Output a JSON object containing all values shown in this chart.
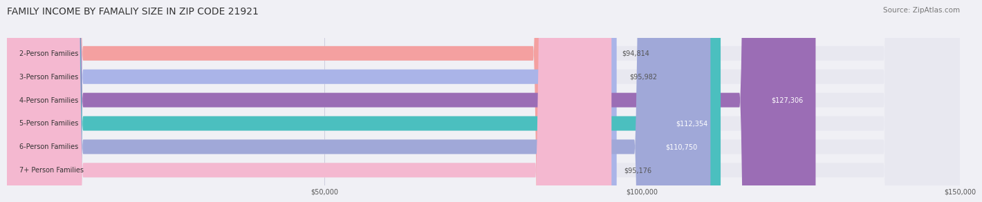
{
  "title": "FAMILY INCOME BY FAMALIY SIZE IN ZIP CODE 21921",
  "source": "Source: ZipAtlas.com",
  "categories": [
    "2-Person Families",
    "3-Person Families",
    "4-Person Families",
    "5-Person Families",
    "6-Person Families",
    "7+ Person Families"
  ],
  "values": [
    94814,
    95982,
    127306,
    112354,
    110750,
    95176
  ],
  "bar_colors": [
    "#f4a0a0",
    "#aab4e8",
    "#9b6db5",
    "#4bbfbf",
    "#a0a8d8",
    "#f4b8d0"
  ],
  "label_colors": [
    "#555555",
    "#555555",
    "#ffffff",
    "#ffffff",
    "#ffffff",
    "#555555"
  ],
  "xlim": [
    0,
    150000
  ],
  "xticks": [
    0,
    50000,
    100000,
    150000
  ],
  "xtick_labels": [
    "",
    "$50,000",
    "$100,000",
    "$150,000"
  ],
  "bar_height": 0.62,
  "figsize": [
    14.06,
    3.05
  ],
  "background_color": "#f0f0f5",
  "bar_bg_color": "#e8e8f0",
  "title_fontsize": 10,
  "source_fontsize": 7.5,
  "label_fontsize": 7,
  "value_fontsize": 7,
  "tick_fontsize": 7
}
